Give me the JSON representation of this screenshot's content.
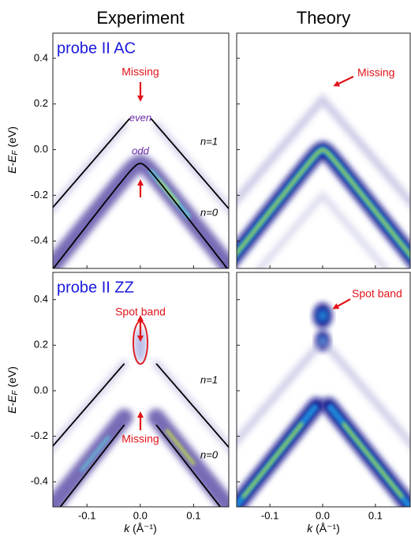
{
  "column_titles": [
    "Experiment",
    "Theory"
  ],
  "chart_data": [
    {
      "type": "heatmap",
      "title": "probe II AC",
      "xlim": [
        -0.164,
        0.166
      ],
      "ylim": [
        -0.52,
        0.51
      ],
      "xticks": [
        -0.1,
        0,
        0.1
      ],
      "yticks": [
        0.4,
        0.2,
        {
          "value": 0,
          "label": "0.0"
        },
        -0.2,
        -0.4
      ],
      "ylabel": {
        "main": "E-E",
        "sub": "F",
        "unit": " (eV)"
      },
      "annotations": [
        "Missing",
        "even",
        "odd",
        "n=1",
        "n=0"
      ]
    },
    {
      "type": "heatmap",
      "xlim": [
        -0.163,
        0.166
      ],
      "ylim": [
        -0.52,
        0.51
      ],
      "xticks": [
        -0.1,
        0,
        0.1
      ],
      "yticks": [
        0.4,
        0.2,
        0,
        -0.2,
        -0.4
      ],
      "annotations": [
        "Missing"
      ]
    },
    {
      "type": "heatmap",
      "title": "probe II ZZ",
      "xlim": [
        -0.164,
        0.166
      ],
      "ylim": [
        -0.51,
        0.52
      ],
      "xticks": [
        {
          "value": -0.1,
          "label": "-0.1"
        },
        {
          "value": 0,
          "label": "0.0"
        },
        {
          "value": 0.1,
          "label": "0.1"
        }
      ],
      "yticks": [
        0.4,
        0.2,
        {
          "value": 0,
          "label": "0.0"
        },
        -0.2,
        -0.4
      ],
      "ylabel": {
        "main": "E-E",
        "sub": "F",
        "unit": " (eV)"
      },
      "xlabel": {
        "symbol": "k",
        "unit": " (Å⁻¹)"
      },
      "annotations": [
        "Spot band",
        "Missing",
        "n=1",
        "n=0"
      ]
    },
    {
      "type": "heatmap",
      "xlim": [
        -0.163,
        0.166
      ],
      "ylim": [
        -0.51,
        0.52
      ],
      "xticks": [
        {
          "value": -0.1,
          "label": "-0.1"
        },
        {
          "value": 0,
          "label": "0.0"
        },
        {
          "value": 0.1,
          "label": "0.1"
        }
      ],
      "yticks": [
        0.4,
        0.2,
        0,
        -0.2,
        -0.4
      ],
      "xlabel": {
        "symbol": "k",
        "unit": " (Å⁻¹)"
      },
      "annotations": [
        "Spot band"
      ]
    }
  ]
}
